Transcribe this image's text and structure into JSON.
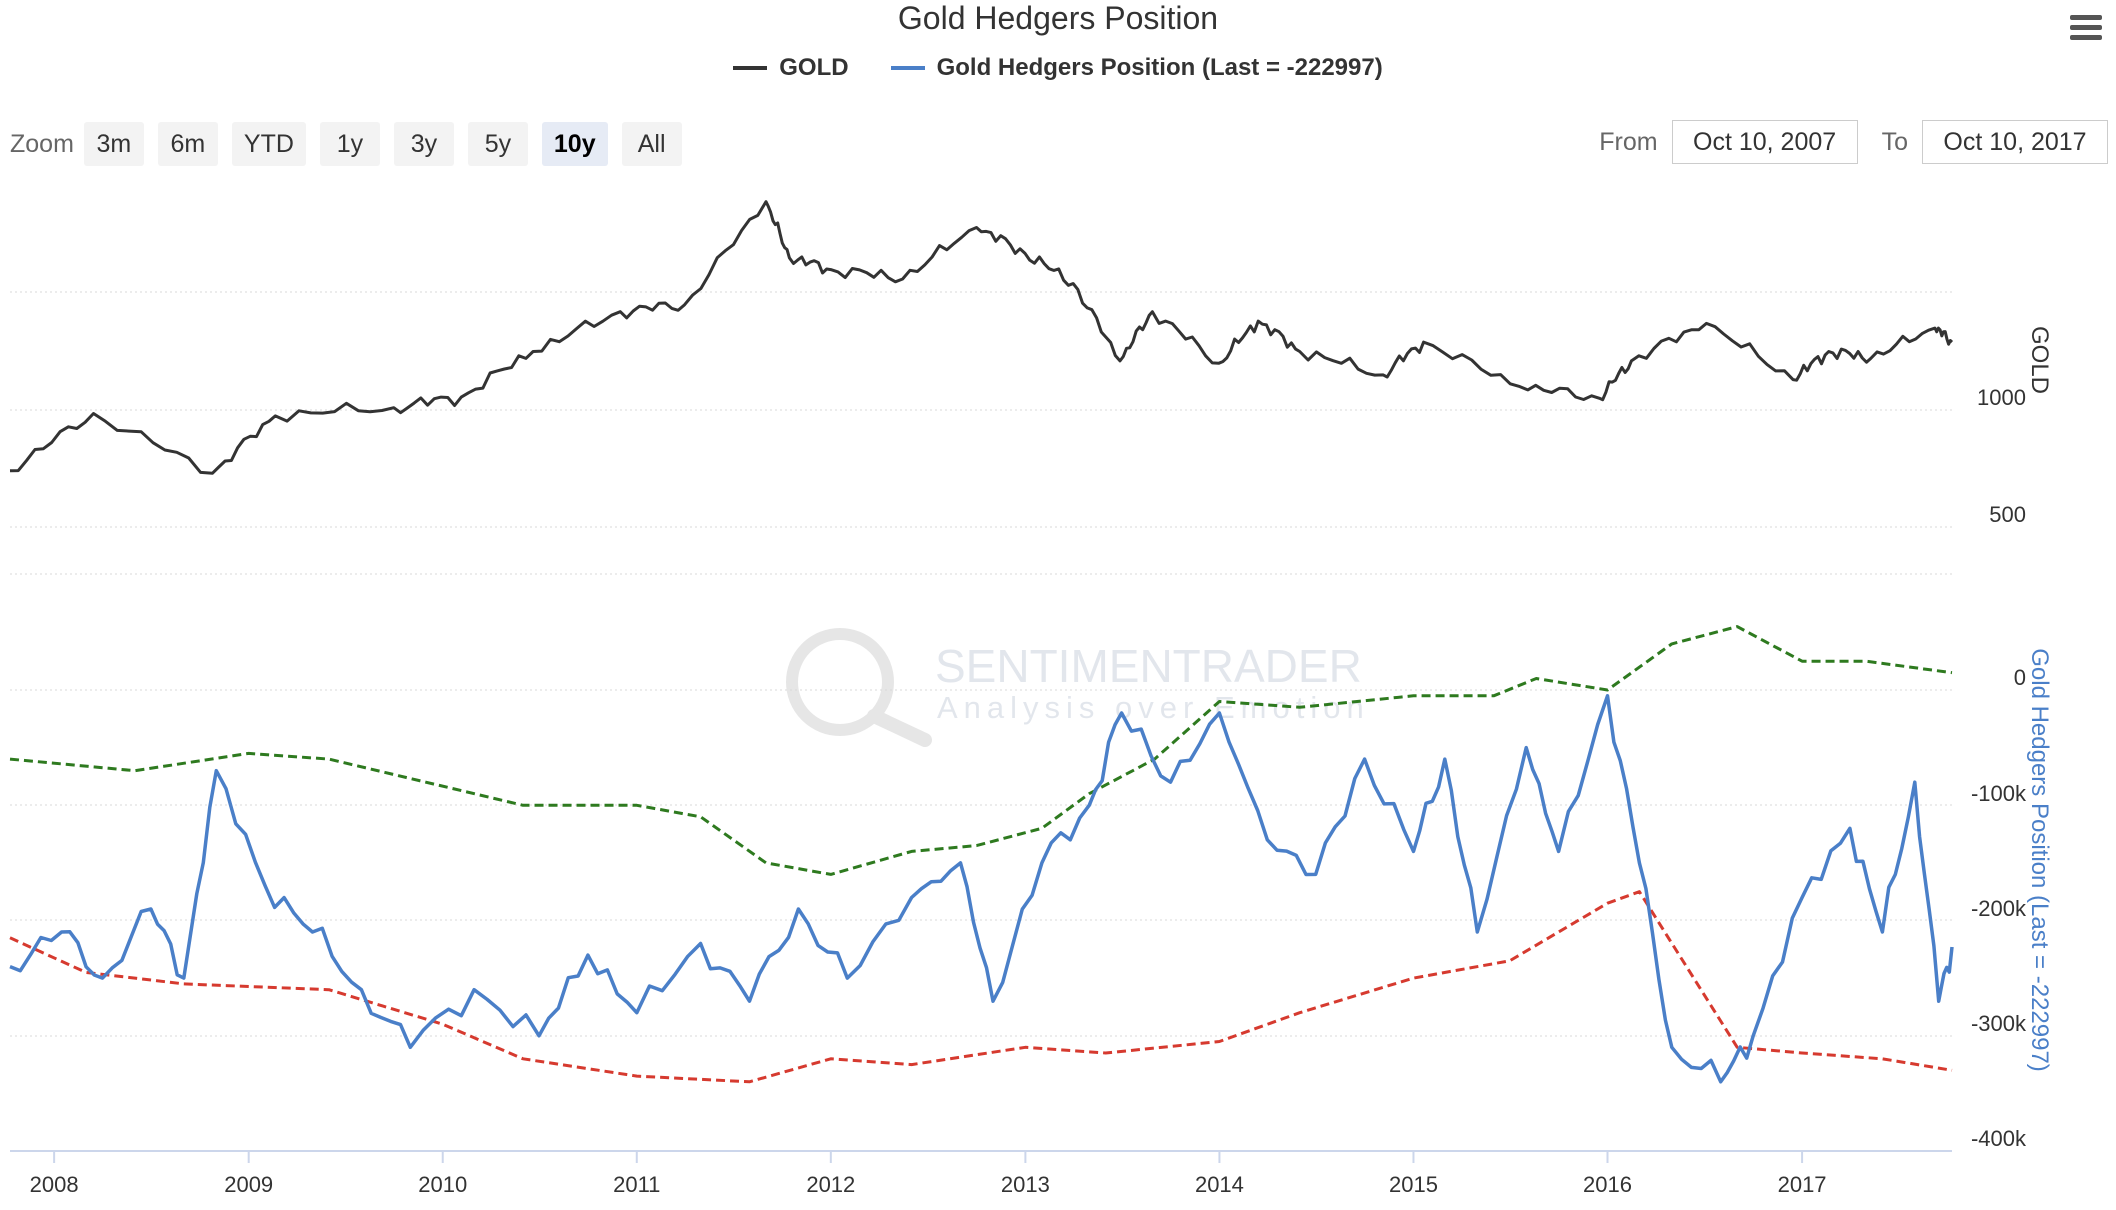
{
  "title": "Gold Hedgers Position",
  "legend": {
    "gold": "GOLD",
    "hedgers": "Gold Hedgers Position (Last = -222997)"
  },
  "zoom": {
    "label": "Zoom",
    "buttons": [
      "3m",
      "6m",
      "YTD",
      "1y",
      "3y",
      "5y",
      "10y",
      "All"
    ],
    "active": "10y"
  },
  "range": {
    "from_label": "From",
    "from_value": "Oct 10, 2007",
    "to_label": "To",
    "to_value": "Oct 10, 2017"
  },
  "watermark": {
    "name": "SENTIMENTRADER",
    "tagline": "Analysis over Emotion"
  },
  "colors": {
    "gold": "#333333",
    "hedgers": "#4a7fc8",
    "upper_band": "#2e7a1f",
    "lower_band": "#d63a2f",
    "grid": "#d8d8d8"
  },
  "chart_data": {
    "type": "line",
    "x_axis": {
      "type": "date",
      "range": [
        "2007-10-10",
        "2017-10-10"
      ],
      "ticks": [
        "2008",
        "2009",
        "2010",
        "2011",
        "2012",
        "2013",
        "2014",
        "2015",
        "2016",
        "2017"
      ]
    },
    "gold_panel": {
      "axis_title": "GOLD",
      "ticks": [
        "1000",
        "500"
      ],
      "series": [
        {
          "name": "GOLD",
          "x": [
            "2007-10-10",
            "2008-03-15",
            "2008-10-25",
            "2009-02-20",
            "2009-10-01",
            "2010-02-05",
            "2010-06-20",
            "2010-12-01",
            "2011-04-01",
            "2011-09-01",
            "2011-10-15",
            "2012-01-01",
            "2012-05-15",
            "2012-10-01",
            "2012-12-31",
            "2013-04-01",
            "2013-06-28",
            "2013-08-28",
            "2013-12-31",
            "2014-03-15",
            "2014-06-01",
            "2014-11-05",
            "2015-01-20",
            "2015-07-20",
            "2015-12-17",
            "2016-02-15",
            "2016-07-05",
            "2016-12-15",
            "2017-02-20",
            "2017-05-10",
            "2017-09-08",
            "2017-10-10"
          ],
          "y": [
            740,
            985,
            730,
            975,
            1010,
            1055,
            1250,
            1420,
            1450,
            1890,
            1650,
            1600,
            1560,
            1780,
            1670,
            1540,
            1210,
            1420,
            1200,
            1380,
            1250,
            1150,
            1290,
            1100,
            1050,
            1210,
            1370,
            1130,
            1250,
            1220,
            1350,
            1290
          ]
        }
      ]
    },
    "hedge_panel": {
      "axis_title": "Gold Hedgers Position (Last = -222997)",
      "ticks": [
        "0",
        "-100k",
        "-200k",
        "-300k",
        "-400k"
      ],
      "series": [
        {
          "name": "Gold Hedgers Position (Last = -222997)",
          "x": [
            "2007-10-10",
            "2008-01-15",
            "2008-04-01",
            "2008-07-01",
            "2008-09-01",
            "2008-11-01",
            "2009-02-01",
            "2009-05-01",
            "2009-08-01",
            "2009-11-01",
            "2010-03-01",
            "2010-07-01",
            "2010-10-01",
            "2011-01-01",
            "2011-05-01",
            "2011-08-01",
            "2011-11-01",
            "2012-02-01",
            "2012-06-01",
            "2012-09-01",
            "2012-11-01",
            "2013-02-01",
            "2013-05-01",
            "2013-07-01",
            "2013-10-01",
            "2014-01-01",
            "2014-04-01",
            "2014-07-01",
            "2014-10-01",
            "2015-01-01",
            "2015-03-01",
            "2015-05-01",
            "2015-08-01",
            "2015-10-01",
            "2016-01-01",
            "2016-03-01",
            "2016-05-01",
            "2016-08-01",
            "2016-10-01",
            "2017-01-01",
            "2017-04-01",
            "2017-06-01",
            "2017-08-01",
            "2017-09-15",
            "2017-10-10"
          ],
          "y": [
            -240000,
            -210000,
            -250000,
            -190000,
            -250000,
            -70000,
            -170000,
            -210000,
            -260000,
            -310000,
            -260000,
            -300000,
            -230000,
            -280000,
            -220000,
            -270000,
            -190000,
            -250000,
            -180000,
            -150000,
            -270000,
            -150000,
            -100000,
            -20000,
            -80000,
            -20000,
            -130000,
            -160000,
            -60000,
            -140000,
            -60000,
            -210000,
            -50000,
            -140000,
            -5000,
            -150000,
            -310000,
            -340000,
            -300000,
            -180000,
            -120000,
            -210000,
            -80000,
            -270000,
            -222997
          ]
        },
        {
          "name": "",
          "x": [
            "2007-10-10",
            "2008-06-01",
            "2009-01-01",
            "2009-06-01",
            "2010-06-01",
            "2011-01-01",
            "2011-05-01",
            "2011-09-01",
            "2012-01-01",
            "2012-06-01",
            "2012-10-01",
            "2013-02-01",
            "2013-05-01",
            "2013-09-01",
            "2014-01-01",
            "2014-06-01",
            "2015-01-01",
            "2015-06-01",
            "2015-08-20",
            "2016-01-01",
            "2016-05-01",
            "2016-09-01",
            "2017-01-01",
            "2017-05-01",
            "2017-10-10"
          ],
          "y": [
            -60000,
            -70000,
            -55000,
            -60000,
            -100000,
            -100000,
            -110000,
            -150000,
            -160000,
            -140000,
            -135000,
            -120000,
            -90000,
            -60000,
            -10000,
            -15000,
            -5000,
            -5000,
            10000,
            0,
            40000,
            55000,
            25000,
            25000,
            15000
          ]
        },
        {
          "name": "",
          "x": [
            "2007-10-10",
            "2008-03-01",
            "2008-09-01",
            "2009-06-01",
            "2010-01-01",
            "2010-06-01",
            "2011-01-01",
            "2011-08-01",
            "2012-01-01",
            "2012-06-01",
            "2013-01-01",
            "2013-06-01",
            "2014-01-01",
            "2014-06-01",
            "2015-01-01",
            "2015-07-01",
            "2016-01-01",
            "2016-03-01",
            "2016-09-01",
            "2017-01-01",
            "2017-06-01",
            "2017-10-10"
          ],
          "y": [
            -215000,
            -245000,
            -255000,
            -260000,
            -290000,
            -320000,
            -335000,
            -340000,
            -320000,
            -325000,
            -310000,
            -315000,
            -305000,
            -280000,
            -250000,
            -235000,
            -185000,
            -175000,
            -310000,
            -315000,
            -320000,
            -330000
          ]
        }
      ]
    }
  }
}
